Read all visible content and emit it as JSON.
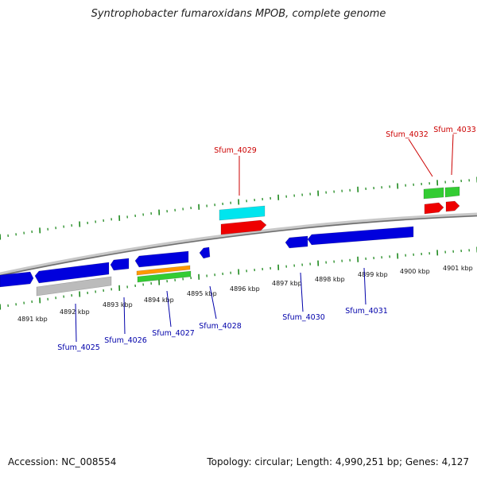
{
  "title": "Syntrophobacter fumaroxidans MPOB, complete genome",
  "footer": {
    "accession": "Accession: NC_008554",
    "stats": "Topology: circular; Length: 4,990,251 bp; Genes: 4,127"
  },
  "colors": {
    "backbone": "#8c8c8c",
    "tick": "#1f8a1f",
    "forward_label": "#cc0000",
    "reverse_label": "#0000aa",
    "gene_blue": "#0000dd",
    "gene_red": "#ee0000",
    "gene_cyan": "#00e5ee",
    "gene_green": "#33cc33",
    "gene_orange": "#ff9900",
    "gene_gray": "#bbbbbb"
  },
  "scale_labels": [
    "4891 kbp",
    "4892 kbp",
    "4893 kbp",
    "4894 kbp",
    "4895 kbp",
    "4896 kbp",
    "4897 kbp",
    "4898 kbp",
    "4899 kbp",
    "4900 kbp",
    "4901 kbp"
  ],
  "gene_labels": {
    "forward": [
      "Sfum_4029",
      "Sfum_4032",
      "Sfum_4033"
    ],
    "reverse": [
      "Sfum_4025",
      "Sfum_4026",
      "Sfum_4027",
      "Sfum_4028",
      "Sfum_4030",
      "Sfum_4031"
    ]
  },
  "features": [
    {
      "id": "f1",
      "color": "gene_blue",
      "strand": "reverse"
    },
    {
      "id": "f2",
      "color": "gene_blue",
      "strand": "reverse"
    },
    {
      "id": "f3",
      "color": "gene_gray",
      "strand": "reverse"
    },
    {
      "id": "f4",
      "color": "gene_blue",
      "strand": "reverse"
    },
    {
      "id": "f5",
      "color": "gene_blue",
      "strand": "reverse"
    },
    {
      "id": "f6",
      "color": "gene_orange",
      "strand": "reverse"
    },
    {
      "id": "f7",
      "color": "gene_green",
      "strand": "reverse"
    },
    {
      "id": "f8",
      "color": "gene_blue",
      "strand": "reverse"
    },
    {
      "id": "f9",
      "color": "gene_cyan",
      "strand": "forward"
    },
    {
      "id": "f10",
      "color": "gene_red",
      "strand": "forward"
    },
    {
      "id": "f11",
      "color": "gene_blue",
      "strand": "reverse"
    },
    {
      "id": "f12",
      "color": "gene_blue",
      "strand": "reverse"
    },
    {
      "id": "f13",
      "color": "gene_green",
      "strand": "forward"
    },
    {
      "id": "f14",
      "color": "gene_red",
      "strand": "forward"
    },
    {
      "id": "f15",
      "color": "gene_green",
      "strand": "forward"
    },
    {
      "id": "f16",
      "color": "gene_red",
      "strand": "forward"
    }
  ]
}
